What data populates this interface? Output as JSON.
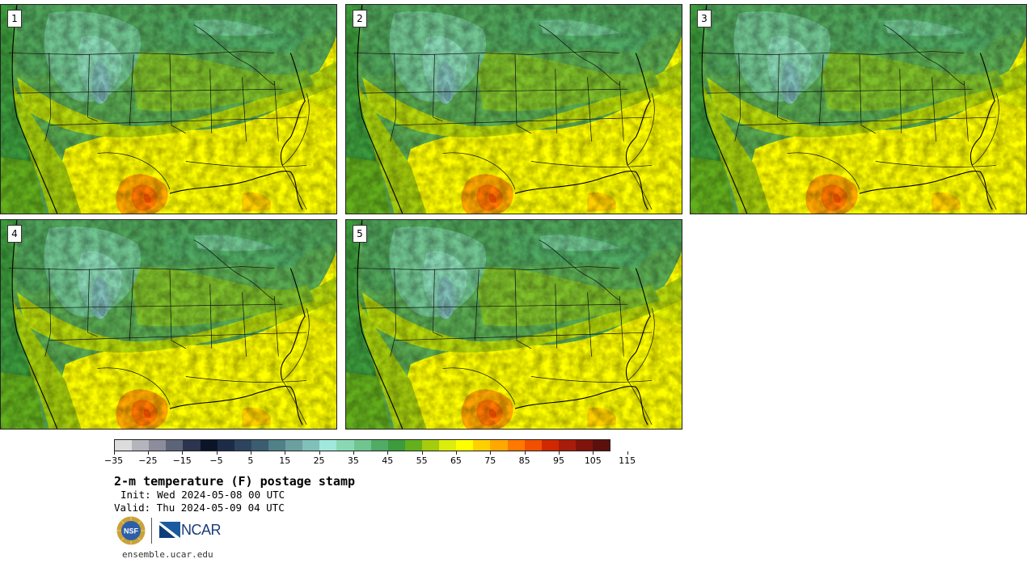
{
  "panels": [
    {
      "number": "1"
    },
    {
      "number": "2"
    },
    {
      "number": "3"
    },
    {
      "number": "4"
    },
    {
      "number": "5"
    }
  ],
  "colorbar": {
    "colors": [
      "#dcdcdc",
      "#b4b4bc",
      "#8c8c9c",
      "#5c6478",
      "#2c3450",
      "#0c1428",
      "#1c2c48",
      "#2c4460",
      "#3c5c70",
      "#508088",
      "#6ca0a0",
      "#80c0b8",
      "#a0e8dc",
      "#88d8b4",
      "#70c490",
      "#50ac64",
      "#3c9c3c",
      "#64b01c",
      "#a4cc0c",
      "#dcec0c",
      "#ffff00",
      "#ffd000",
      "#ffa800",
      "#ff7800",
      "#f05000",
      "#d02800",
      "#a81c0c",
      "#80140c",
      "#5c100c"
    ],
    "ticks": [
      "−35",
      "−25",
      "−15",
      "−5",
      "5",
      "15",
      "25",
      "35",
      "45",
      "55",
      "65",
      "75",
      "85",
      "95",
      "105",
      "115"
    ]
  },
  "title": "2-m temperature (F) postage stamp",
  "init": "Init: Wed 2024-05-08 00 UTC",
  "valid": "Valid: Thu 2024-05-09 04 UTC",
  "logos": {
    "nsf": "NSF",
    "ncar": "NCAR"
  },
  "site": "ensemble.ucar.edu"
}
